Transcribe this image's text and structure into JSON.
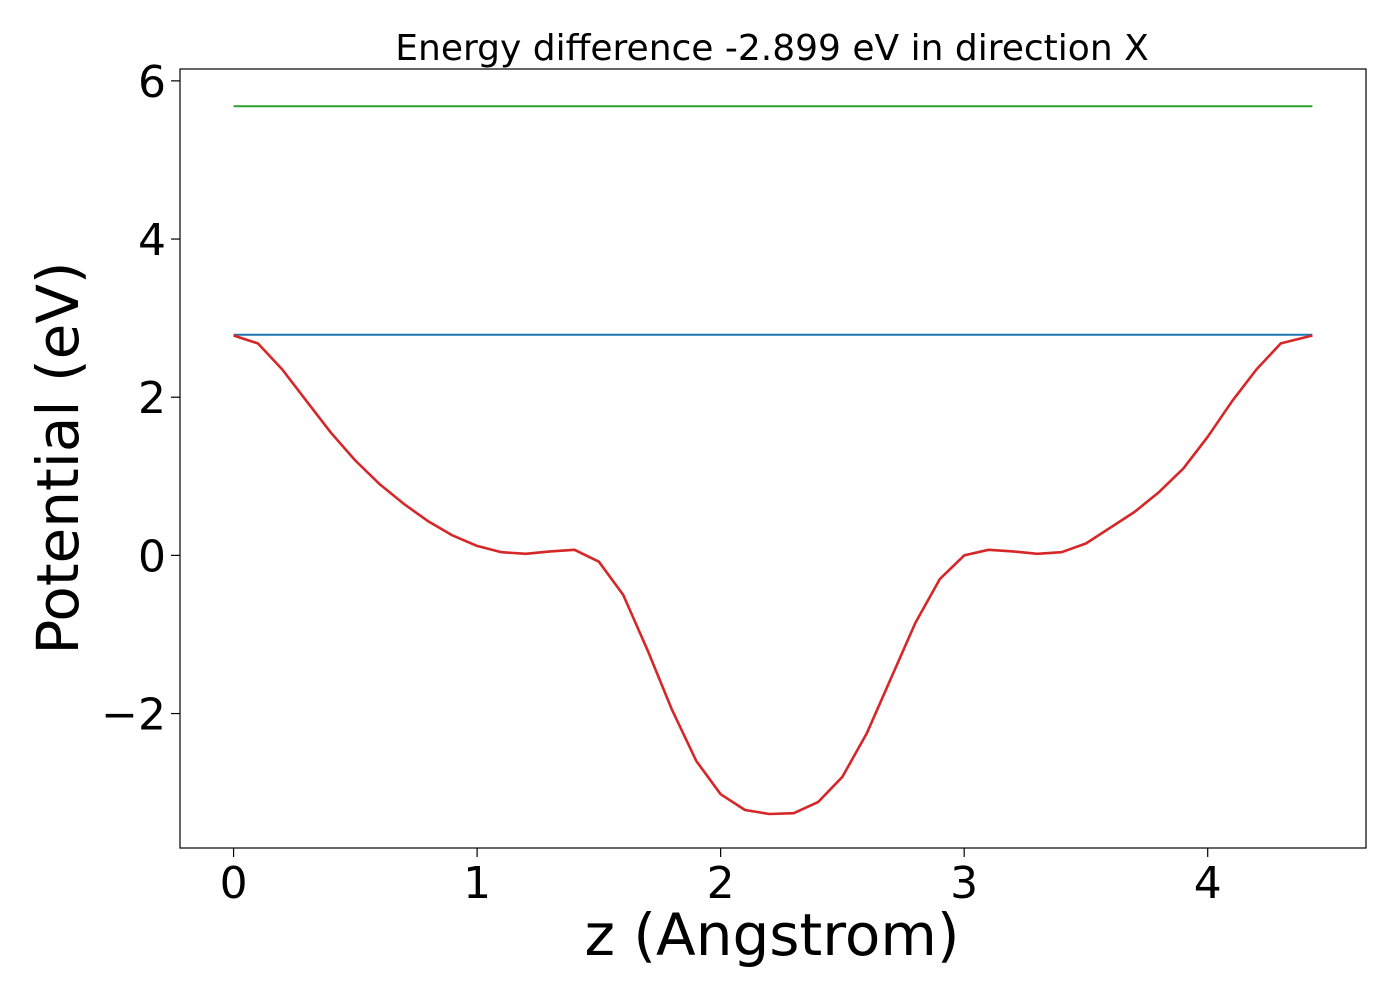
{
  "chart_data": {
    "type": "line",
    "title": "Energy difference -2.899 eV in direction X",
    "xlabel": "z (Angstrom)",
    "ylabel": "Potential (eV)",
    "xlim": [
      -0.22,
      4.65
    ],
    "ylim": [
      -3.7,
      6.15
    ],
    "xticks": [
      0,
      1,
      2,
      3,
      4
    ],
    "yticks": [
      -2,
      0,
      2,
      4,
      6
    ],
    "xtick_labels": [
      "0",
      "1",
      "2",
      "3",
      "4"
    ],
    "ytick_labels": [
      "−2",
      "0",
      "2",
      "4",
      "6"
    ],
    "grid": false,
    "series": [
      {
        "color": "#2ca02c",
        "x": [
          0,
          4.43
        ],
        "y": [
          5.68,
          5.68
        ]
      },
      {
        "color": "#1f77b4",
        "x": [
          0,
          4.43
        ],
        "y": [
          2.79,
          2.79
        ]
      },
      {
        "color": "#d62728",
        "x": [
          0.0,
          0.1,
          0.2,
          0.3,
          0.4,
          0.5,
          0.6,
          0.7,
          0.8,
          0.9,
          1.0,
          1.1,
          1.2,
          1.3,
          1.4,
          1.5,
          1.6,
          1.7,
          1.8,
          1.9,
          2.0,
          2.1,
          2.2,
          2.3,
          2.4,
          2.5,
          2.6,
          2.7,
          2.8,
          2.9,
          3.0,
          3.1,
          3.2,
          3.3,
          3.4,
          3.5,
          3.6,
          3.7,
          3.8,
          3.9,
          4.0,
          4.1,
          4.2,
          4.3,
          4.43
        ],
        "y": [
          2.78,
          2.68,
          2.35,
          1.95,
          1.55,
          1.2,
          0.9,
          0.65,
          0.43,
          0.25,
          0.12,
          0.04,
          0.02,
          0.05,
          0.07,
          -0.08,
          -0.5,
          -1.2,
          -1.95,
          -2.6,
          -3.02,
          -3.22,
          -3.27,
          -3.26,
          -3.12,
          -2.8,
          -2.25,
          -1.55,
          -0.85,
          -0.3,
          0.0,
          0.07,
          0.05,
          0.02,
          0.04,
          0.15,
          0.35,
          0.55,
          0.8,
          1.1,
          1.5,
          1.95,
          2.35,
          2.68,
          2.78
        ]
      }
    ]
  }
}
